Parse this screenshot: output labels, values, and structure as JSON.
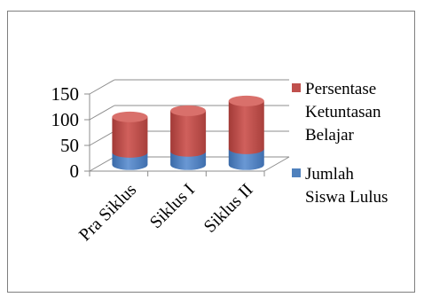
{
  "chart_data": {
    "type": "bar",
    "stacked": true,
    "three_d": true,
    "categories": [
      "Pra Siklus",
      "Siklus I",
      "Siklus II"
    ],
    "series": [
      {
        "name": "Jumlah Siswa Lulus",
        "name_lines": [
          "Jumlah",
          "Siswa Lulus"
        ],
        "values": [
          24,
          26,
          31
        ],
        "color": "#4f81bd"
      },
      {
        "name": "Persentase Ketuntasan Belajar",
        "name_lines": [
          "Persentase",
          "Ketuntasan",
          "Belajar"
        ],
        "values": [
          69,
          79,
          93
        ],
        "color": "#c0504d"
      }
    ],
    "yticks": [
      "0",
      "50",
      "100",
      "150"
    ],
    "ylim": [
      0,
      150
    ],
    "grid": true,
    "legend_position": "right"
  }
}
